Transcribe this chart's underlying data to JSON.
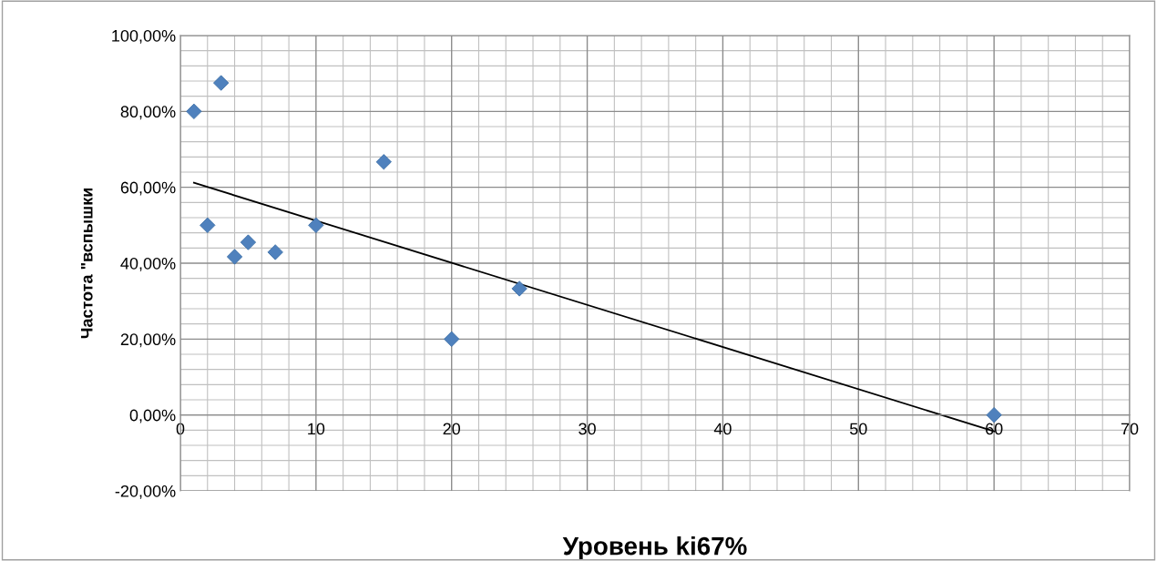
{
  "chart_data": {
    "type": "scatter",
    "xlabel": "Уровень ki67%",
    "ylabel": "Частота \"вспышки",
    "xlim": [
      0,
      70
    ],
    "xticks": [
      0,
      10,
      20,
      30,
      40,
      50,
      60,
      70
    ],
    "ylim": [
      -20,
      100
    ],
    "yticks": [
      {
        "value": -20,
        "label": "-20,00%"
      },
      {
        "value": 0,
        "label": "0,00%"
      },
      {
        "value": 20,
        "label": "20,00%"
      },
      {
        "value": 40,
        "label": "40,00%"
      },
      {
        "value": 60,
        "label": "60,00%"
      },
      {
        "value": 80,
        "label": "80,00%"
      },
      {
        "value": 100,
        "label": "100,00%"
      }
    ],
    "grid": true,
    "marker": "diamond",
    "legend": false,
    "series": [
      {
        "color": "#4f81bd",
        "x": [
          1,
          2,
          3,
          4,
          5,
          7,
          10,
          15,
          20,
          25,
          60
        ],
        "values": [
          80,
          50,
          87.5,
          41.7,
          45.5,
          42.9,
          50,
          66.7,
          20,
          33.3,
          0
        ]
      },
      {
        "type": "line",
        "color": "#000000",
        "marker": "none",
        "x": [
          1,
          60
        ],
        "values": [
          61.2,
          -4.3
        ]
      }
    ]
  }
}
